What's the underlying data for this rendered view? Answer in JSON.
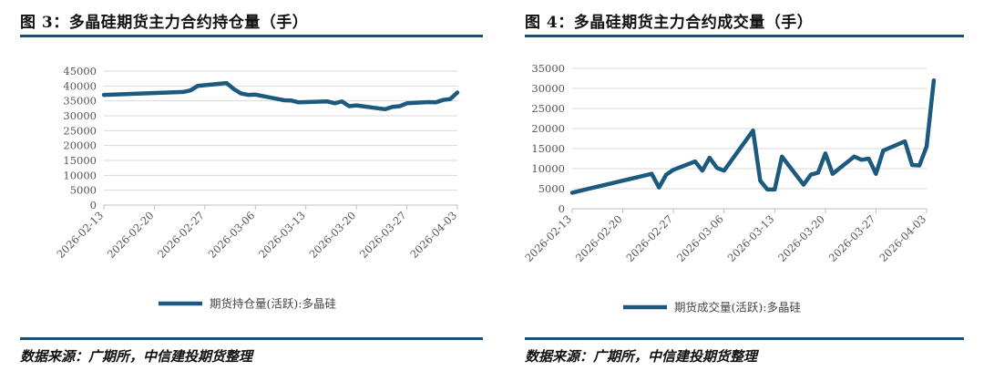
{
  "left_panel": {
    "title": "图 3：多晶硅期货主力合约持仓量（手）",
    "source": "数据来源：广期所，中信建投期货整理"
  },
  "right_panel": {
    "title": "图 4：多晶硅期货主力合约成交量（手）",
    "source": "数据来源：广期所，中信建投期货整理"
  },
  "colors": {
    "series": "#1b5a7e",
    "rule": "#1b4f72",
    "grid": "#d9d9d9"
  },
  "chart_data": [
    {
      "type": "line",
      "title": "",
      "xlabel": "",
      "ylabel": "",
      "ylim": [
        0,
        45000
      ],
      "yticks": [
        0,
        5000,
        10000,
        15000,
        20000,
        25000,
        30000,
        35000,
        40000,
        45000
      ],
      "xticks": [
        "2026-02-13",
        "2026-02-20",
        "2026-02-27",
        "2026-03-06",
        "2026-03-13",
        "2026-03-20",
        "2026-03-27",
        "2026-04-03"
      ],
      "grid": true,
      "legend_position": "bottom",
      "series": [
        {
          "name": "期货持仓量(活跃):多晶硅",
          "points": [
            [
              "2026-02-13",
              37000
            ],
            [
              "2026-02-24",
              38000
            ],
            [
              "2026-02-25",
              38500
            ],
            [
              "2026-02-26",
              40000
            ],
            [
              "2026-03-02",
              41000
            ],
            [
              "2026-03-03",
              39000
            ],
            [
              "2026-03-04",
              37500
            ],
            [
              "2026-03-05",
              37000
            ],
            [
              "2026-03-06",
              37100
            ],
            [
              "2026-03-09",
              35700
            ],
            [
              "2026-03-10",
              35200
            ],
            [
              "2026-03-11",
              35100
            ],
            [
              "2026-03-12",
              34500
            ],
            [
              "2026-03-16",
              34800
            ],
            [
              "2026-03-17",
              34200
            ],
            [
              "2026-03-18",
              34800
            ],
            [
              "2026-03-19",
              33200
            ],
            [
              "2026-03-20",
              33500
            ],
            [
              "2026-03-23",
              32500
            ],
            [
              "2026-03-24",
              32200
            ],
            [
              "2026-03-25",
              33000
            ],
            [
              "2026-03-26",
              33200
            ],
            [
              "2026-03-27",
              34200
            ],
            [
              "2026-03-30",
              34600
            ],
            [
              "2026-03-31",
              34500
            ],
            [
              "2026-04-01",
              35300
            ],
            [
              "2026-04-02",
              35600
            ],
            [
              "2026-04-03",
              37800
            ]
          ]
        }
      ]
    },
    {
      "type": "line",
      "title": "",
      "xlabel": "",
      "ylabel": "",
      "ylim": [
        0,
        35000
      ],
      "yticks": [
        0,
        5000,
        10000,
        15000,
        20000,
        25000,
        30000,
        35000
      ],
      "xticks": [
        "2026-02-13",
        "2026-02-20",
        "2026-02-27",
        "2026-03-06",
        "2026-03-13",
        "2026-03-20",
        "2026-03-27",
        "2026-04-03"
      ],
      "grid": true,
      "legend_position": "bottom",
      "series": [
        {
          "name": "期货成交量(活跃):多晶硅",
          "points": [
            [
              "2026-02-13",
              4000
            ],
            [
              "2026-02-24",
              8700
            ],
            [
              "2026-02-25",
              5300
            ],
            [
              "2026-02-26",
              8500
            ],
            [
              "2026-02-27",
              9700
            ],
            [
              "2026-03-02",
              11800
            ],
            [
              "2026-03-03",
              9500
            ],
            [
              "2026-03-04",
              12700
            ],
            [
              "2026-03-05",
              10200
            ],
            [
              "2026-03-06",
              9500
            ],
            [
              "2026-03-10",
              19500
            ],
            [
              "2026-03-11",
              7000
            ],
            [
              "2026-03-12",
              4800
            ],
            [
              "2026-03-13",
              4800
            ],
            [
              "2026-03-14",
              13000
            ],
            [
              "2026-03-17",
              6000
            ],
            [
              "2026-03-18",
              8500
            ],
            [
              "2026-03-19",
              9000
            ],
            [
              "2026-03-20",
              13800
            ],
            [
              "2026-03-21",
              8700
            ],
            [
              "2026-03-24",
              13000
            ],
            [
              "2026-03-25",
              12200
            ],
            [
              "2026-03-26",
              12500
            ],
            [
              "2026-03-27",
              8700
            ],
            [
              "2026-03-28",
              14500
            ],
            [
              "2026-03-31",
              16800
            ],
            [
              "2026-04-01",
              10900
            ],
            [
              "2026-04-02",
              10800
            ],
            [
              "2026-04-03",
              15500
            ],
            [
              "2026-04-04",
              32000
            ]
          ]
        }
      ]
    }
  ]
}
